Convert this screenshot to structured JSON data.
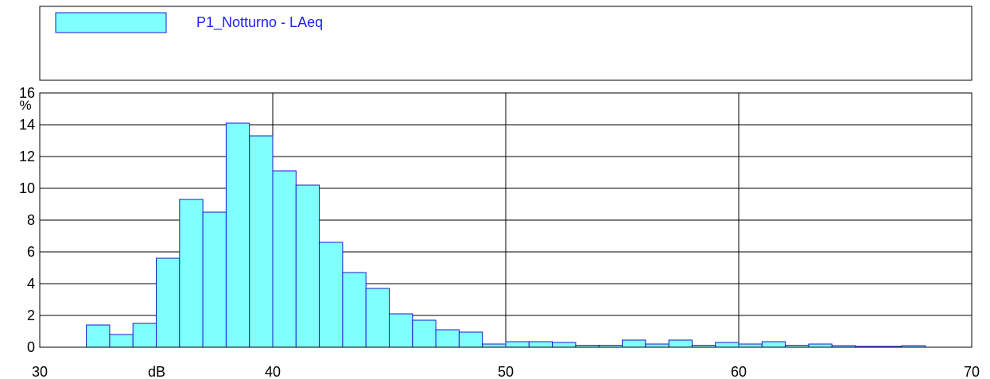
{
  "chart_data": {
    "type": "bar",
    "legend": {
      "label": "P1_Notturno - LAeq",
      "placement": "top-left"
    },
    "xlabel": "dB",
    "ylabel": "%",
    "xlim": [
      30,
      70
    ],
    "ylim": [
      0,
      16
    ],
    "xticks": [
      30,
      40,
      50,
      60,
      70
    ],
    "yticks": [
      0,
      2,
      4,
      6,
      8,
      10,
      12,
      14,
      16
    ],
    "grid": true,
    "bin_width": 1,
    "series": [
      {
        "bins": [
          {
            "x": 32.5,
            "value": 1.4
          },
          {
            "x": 33.5,
            "value": 0.8
          },
          {
            "x": 34.5,
            "value": 1.5
          },
          {
            "x": 35.5,
            "value": 5.6
          },
          {
            "x": 36.5,
            "value": 9.3
          },
          {
            "x": 37.5,
            "value": 8.5
          },
          {
            "x": 38.5,
            "value": 14.1
          },
          {
            "x": 39.5,
            "value": 13.3
          },
          {
            "x": 40.5,
            "value": 11.1
          },
          {
            "x": 41.5,
            "value": 10.2
          },
          {
            "x": 42.5,
            "value": 6.6
          },
          {
            "x": 43.5,
            "value": 4.7
          },
          {
            "x": 44.5,
            "value": 3.7
          },
          {
            "x": 45.5,
            "value": 2.1
          },
          {
            "x": 46.5,
            "value": 1.7
          },
          {
            "x": 47.5,
            "value": 1.1
          },
          {
            "x": 48.5,
            "value": 0.95
          },
          {
            "x": 49.5,
            "value": 0.2
          },
          {
            "x": 50.5,
            "value": 0.35
          },
          {
            "x": 51.5,
            "value": 0.35
          },
          {
            "x": 52.5,
            "value": 0.3
          },
          {
            "x": 53.5,
            "value": 0.12
          },
          {
            "x": 54.5,
            "value": 0.12
          },
          {
            "x": 55.5,
            "value": 0.45
          },
          {
            "x": 56.5,
            "value": 0.2
          },
          {
            "x": 57.5,
            "value": 0.45
          },
          {
            "x": 58.5,
            "value": 0.12
          },
          {
            "x": 59.5,
            "value": 0.3
          },
          {
            "x": 60.5,
            "value": 0.2
          },
          {
            "x": 61.5,
            "value": 0.35
          },
          {
            "x": 62.5,
            "value": 0.12
          },
          {
            "x": 63.5,
            "value": 0.2
          },
          {
            "x": 64.5,
            "value": 0.1
          },
          {
            "x": 65.5,
            "value": 0.05
          },
          {
            "x": 66.5,
            "value": 0.05
          },
          {
            "x": 67.5,
            "value": 0.1
          }
        ]
      }
    ],
    "colors": {
      "bar_fill": "#80ffff",
      "bar_edge": "#1a1acc",
      "legend_text": "#2020ff",
      "grid": "#000000"
    }
  }
}
